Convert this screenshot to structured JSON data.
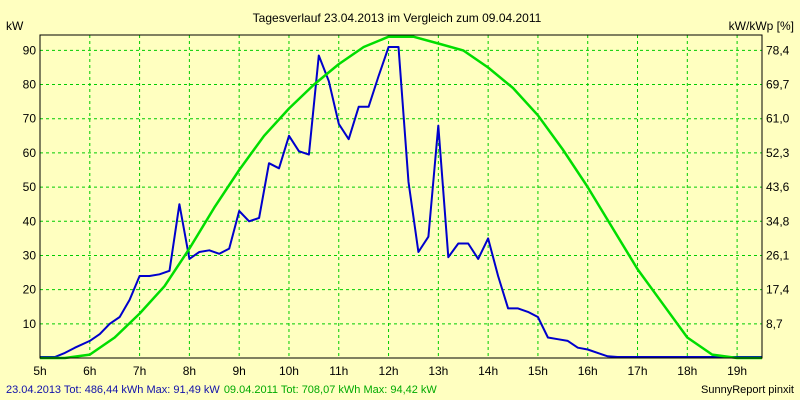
{
  "colors": {
    "background": "#FFFFC0",
    "plot_background": "#FFFFC0",
    "grid": "#00CC00",
    "series_2013": "#0000CC",
    "series_2011": "#00DD00",
    "footer_2013": "#1010AA",
    "footer_2011": "#00AA00",
    "text": "#000000"
  },
  "footer": {
    "stats_2013": "23.04.2013 Tot: 486,44 kWh Max: 91,49 kW",
    "stats_2011": "09.04.2011 Tot: 708,07 kWh Max: 94,42 kW",
    "brand": "SunnyReport pinxit"
  },
  "chart_data": {
    "type": "line",
    "title": "Tagesverlauf 23.04.2013 im Vergleich zum 09.04.2011",
    "ylabel_left": "kW",
    "ylabel_right": "kW/kWp [%]",
    "xlabel": "",
    "xlim": [
      5.0,
      19.5
    ],
    "ylim": [
      0,
      94.5
    ],
    "grid": true,
    "legend": "none",
    "x_ticks": [
      5,
      6,
      7,
      8,
      9,
      10,
      11,
      12,
      13,
      14,
      15,
      16,
      17,
      18,
      19
    ],
    "x_tick_labels": [
      "5h",
      "6h",
      "7h",
      "8h",
      "9h",
      "10h",
      "11h",
      "12h",
      "13h",
      "14h",
      "15h",
      "16h",
      "17h",
      "18h",
      "19h"
    ],
    "y_ticks_left": [
      10,
      20,
      30,
      40,
      50,
      60,
      70,
      80,
      90
    ],
    "y_tick_labels_left": [
      "10",
      "20",
      "30",
      "40",
      "50",
      "60",
      "70",
      "80",
      "90"
    ],
    "y_ticks_right": [
      "8,7",
      "17,4",
      "26,1",
      "34,8",
      "43,6",
      "52,3",
      "61,0",
      "69,7",
      "78,4"
    ],
    "series": [
      {
        "color": "#0000CC",
        "x": [
          5.0,
          5.3,
          5.5,
          5.7,
          6.0,
          6.2,
          6.4,
          6.6,
          6.8,
          7.0,
          7.2,
          7.4,
          7.6,
          7.8,
          8.0,
          8.2,
          8.4,
          8.6,
          8.8,
          9.0,
          9.2,
          9.4,
          9.6,
          9.8,
          10.0,
          10.2,
          10.4,
          10.6,
          10.8,
          11.0,
          11.2,
          11.4,
          11.6,
          11.8,
          12.0,
          12.2,
          12.4,
          12.6,
          12.8,
          13.0,
          13.2,
          13.4,
          13.6,
          13.8,
          14.0,
          14.2,
          14.4,
          14.6,
          14.8,
          15.0,
          15.2,
          15.4,
          15.6,
          15.8,
          16.0,
          16.2,
          16.4,
          16.6,
          16.8,
          17.0,
          17.2,
          17.4,
          17.6,
          17.8,
          18.0,
          18.2,
          18.4,
          18.6,
          18.8,
          19.0,
          19.2,
          19.5
        ],
        "y": [
          0.3,
          0.3,
          1.5,
          3,
          5,
          7,
          10,
          12,
          17,
          24,
          24,
          24.5,
          25.5,
          45,
          29,
          31,
          31.5,
          30.5,
          32,
          43,
          40,
          41,
          57,
          55.5,
          65,
          60.5,
          59.5,
          88.5,
          81,
          68.5,
          64,
          73.5,
          73.5,
          82.5,
          91,
          91,
          51.5,
          31,
          35.5,
          68,
          29.5,
          33.5,
          33.5,
          29,
          35,
          24,
          14.5,
          14.5,
          13.5,
          12,
          6,
          5.5,
          5,
          3,
          2.5,
          1.5,
          0.5,
          0.3,
          0.3,
          0.3,
          0.3,
          0.3,
          0.3,
          0.3,
          0.3,
          0.3,
          0.3,
          0.3,
          0.3,
          0.3,
          0.3,
          0.3
        ]
      },
      {
        "color": "#00DD00",
        "x": [
          5.0,
          5.5,
          6.0,
          6.5,
          7.0,
          7.5,
          8.0,
          8.5,
          9.0,
          9.5,
          10.0,
          10.5,
          11.0,
          11.5,
          12.0,
          12.5,
          13.0,
          13.5,
          14.0,
          14.5,
          15.0,
          15.5,
          16.0,
          16.5,
          17.0,
          17.5,
          18.0,
          18.5,
          19.0,
          19.5
        ],
        "y": [
          0,
          0,
          1,
          6,
          13,
          21,
          32,
          44,
          55,
          65,
          73,
          80,
          86,
          91,
          94,
          94,
          92,
          90,
          85,
          79,
          71,
          61,
          50,
          38,
          26,
          16,
          6,
          1,
          0,
          0
        ]
      }
    ]
  }
}
